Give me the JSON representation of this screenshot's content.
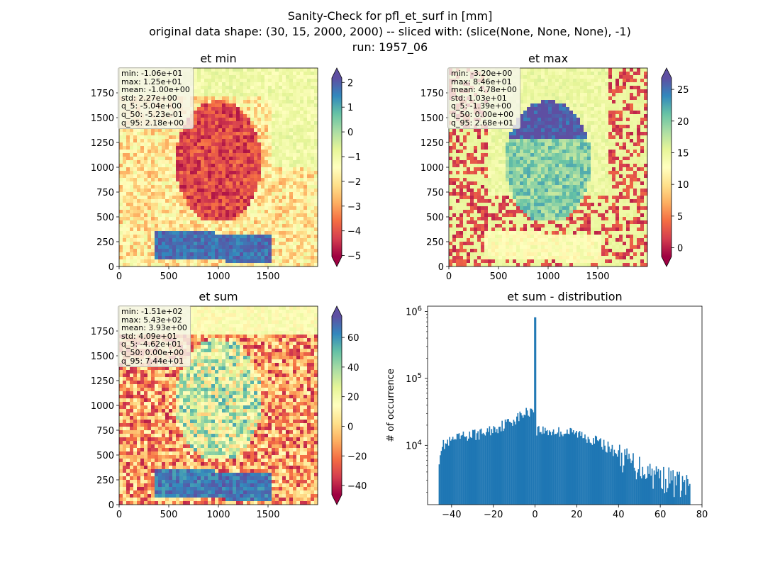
{
  "figure": {
    "title_lines": [
      "Sanity-Check for pfl_et_surf in [mm]",
      "original data shape: (30, 15, 2000, 2000) -- sliced with: (slice(None, None, None), -1)",
      "run: 1957_06"
    ]
  },
  "colormap": {
    "name": "Spectral",
    "stops": [
      "#9e0142",
      "#d53e4f",
      "#f46d43",
      "#fdae61",
      "#fee08b",
      "#ffffbf",
      "#e6f598",
      "#abdda4",
      "#66c2a5",
      "#3288bd",
      "#5e4fa2"
    ]
  },
  "panels": [
    {
      "id": "et-min",
      "title": "et min",
      "stats": [
        "min: -1.06e+01",
        "max: 1.25e+01",
        "mean: -1.00e+00",
        "std: 2.27e+00",
        "q_5: -5.04e+00",
        "q_50: -5.23e-01",
        "q_95: 2.18e+00"
      ],
      "x_ticks": [
        "0",
        "500",
        "1000",
        "1500"
      ],
      "y_ticks": [
        "0",
        "250",
        "500",
        "750",
        "1000",
        "1250",
        "1500",
        "1750"
      ],
      "colorbar_ticks": [
        "−5",
        "−4",
        "−3",
        "−2",
        "−1",
        "0",
        "1",
        "2"
      ],
      "colorbar_range": [
        -5.04,
        2.18
      ]
    },
    {
      "id": "et-max",
      "title": "et max",
      "stats": [
        "min: -3.20e+00",
        "max: 8.46e+01",
        "mean: 4.78e+00",
        "std: 1.03e+01",
        "q_5: -1.39e+00",
        "q_50: 0.00e+00",
        "q_95: 2.68e+01"
      ],
      "x_ticks": [
        "0",
        "500",
        "1000",
        "1500"
      ],
      "y_ticks": [
        "0",
        "250",
        "500",
        "750",
        "1000",
        "1250",
        "1500",
        "1750"
      ],
      "colorbar_ticks": [
        "0",
        "5",
        "10",
        "15",
        "20",
        "25"
      ],
      "colorbar_range": [
        -1.39,
        26.8
      ]
    },
    {
      "id": "et-sum",
      "title": "et sum",
      "stats": [
        "min: -1.51e+02",
        "max: 5.43e+02",
        "mean: 3.93e+00",
        "std: 4.09e+01",
        "q_5: -4.62e+01",
        "q_50: 0.00e+00",
        "q_95: 7.44e+01"
      ],
      "x_ticks": [
        "0",
        "500",
        "1000",
        "1500"
      ],
      "y_ticks": [
        "0",
        "250",
        "500",
        "750",
        "1000",
        "1250",
        "1500",
        "1750"
      ],
      "colorbar_ticks": [
        "−40",
        "−20",
        "0",
        "20",
        "40",
        "60"
      ],
      "colorbar_range": [
        -46.2,
        74.4
      ]
    }
  ],
  "chart_data": [
    {
      "type": "heatmap",
      "title": "et min",
      "xlim": [
        0,
        2000
      ],
      "ylim": [
        0,
        2000
      ],
      "color_range": [
        -5.04,
        2.18
      ]
    },
    {
      "type": "heatmap",
      "title": "et max",
      "xlim": [
        0,
        2000
      ],
      "ylim": [
        0,
        2000
      ],
      "color_range": [
        -1.39,
        26.8
      ]
    },
    {
      "type": "heatmap",
      "title": "et sum",
      "xlim": [
        0,
        2000
      ],
      "ylim": [
        0,
        2000
      ],
      "color_range": [
        -46.2,
        74.4
      ]
    },
    {
      "type": "bar",
      "title": "et sum - distribution",
      "xlabel": "",
      "ylabel": "# of occurrence",
      "yscale": "log",
      "xlim": [
        -51.5,
        80
      ],
      "ylim": [
        1300,
        1200000
      ],
      "x_ticks": [
        "−40",
        "−20",
        "0",
        "20",
        "40",
        "60",
        "80"
      ],
      "y_ticks": [
        "10^4",
        "10^5",
        "10^6"
      ],
      "peak": {
        "x": 0,
        "y": 820000
      },
      "bin_range": [
        -46.2,
        74.4
      ],
      "profile": [
        [
          -46.2,
          5800
        ],
        [
          -45,
          9800
        ],
        [
          -40,
          11500
        ],
        [
          -35,
          13500
        ],
        [
          -30,
          14500
        ],
        [
          -25,
          15200
        ],
        [
          -20,
          17500
        ],
        [
          -15,
          20500
        ],
        [
          -10,
          24500
        ],
        [
          -5,
          30000
        ],
        [
          -0.4,
          36000
        ],
        [
          0.4,
          17500
        ],
        [
          5,
          16500
        ],
        [
          10,
          16000
        ],
        [
          15,
          16000
        ],
        [
          20,
          15000
        ],
        [
          25,
          13500
        ],
        [
          30,
          11500
        ],
        [
          35,
          9500
        ],
        [
          40,
          7500
        ],
        [
          45,
          6000
        ],
        [
          50,
          5000
        ],
        [
          55,
          4200
        ],
        [
          60,
          3600
        ],
        [
          65,
          3200
        ],
        [
          70,
          2800
        ],
        [
          74.4,
          2500
        ]
      ]
    }
  ]
}
